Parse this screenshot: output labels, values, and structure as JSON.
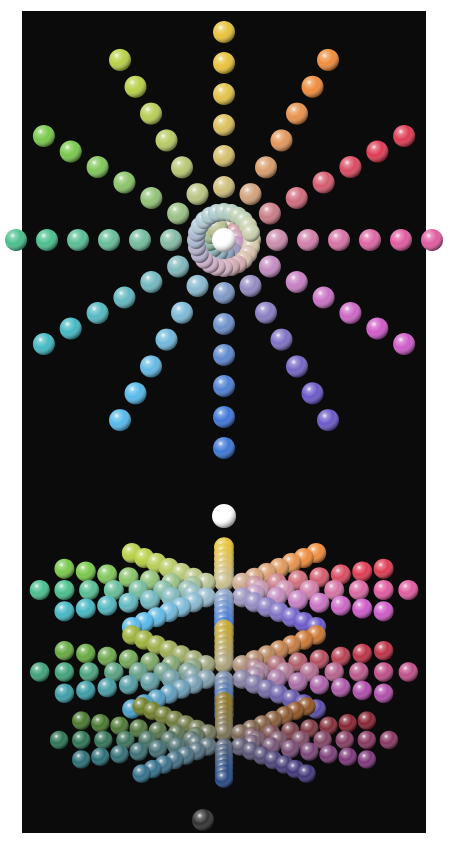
{
  "scene": {
    "subject": "color-sphere-wheel",
    "views": [
      "top-view",
      "perspective-stack"
    ],
    "background_color": "#0b0b0b",
    "frame_color": "#ffffff"
  },
  "palette": {
    "hues": [
      "#e7c23a",
      "#ef8b3a",
      "#de3a52",
      "#e15aa0",
      "#cf5ac8",
      "#6a58c8",
      "#3d76d6",
      "#55b9ea",
      "#44b8c3",
      "#49bf8d",
      "#78c84b",
      "#b7d045"
    ],
    "center_color": "#ffffff",
    "center_dim_color": "#303030"
  }
}
